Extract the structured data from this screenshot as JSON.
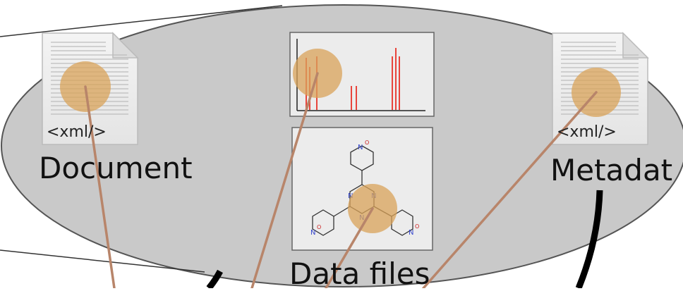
{
  "labels": {
    "document": "Document",
    "metadata": "Metadat",
    "data_files": "Data files"
  },
  "icons": {
    "document_icon": "xml-document-icon",
    "metadata_icon": "xml-document-icon",
    "spectrum": "spectrum-plot-icon",
    "molecule": "molecule-structure-icon"
  },
  "doc_tag": "<xml/>",
  "atom_labels": {
    "n": "N",
    "o": "O"
  },
  "colors": {
    "ellipse_fill": "#c9c9c9",
    "highlight": "#d9a35a",
    "connector": "#b8856a",
    "spectrum_peaks": "#e8453c"
  }
}
